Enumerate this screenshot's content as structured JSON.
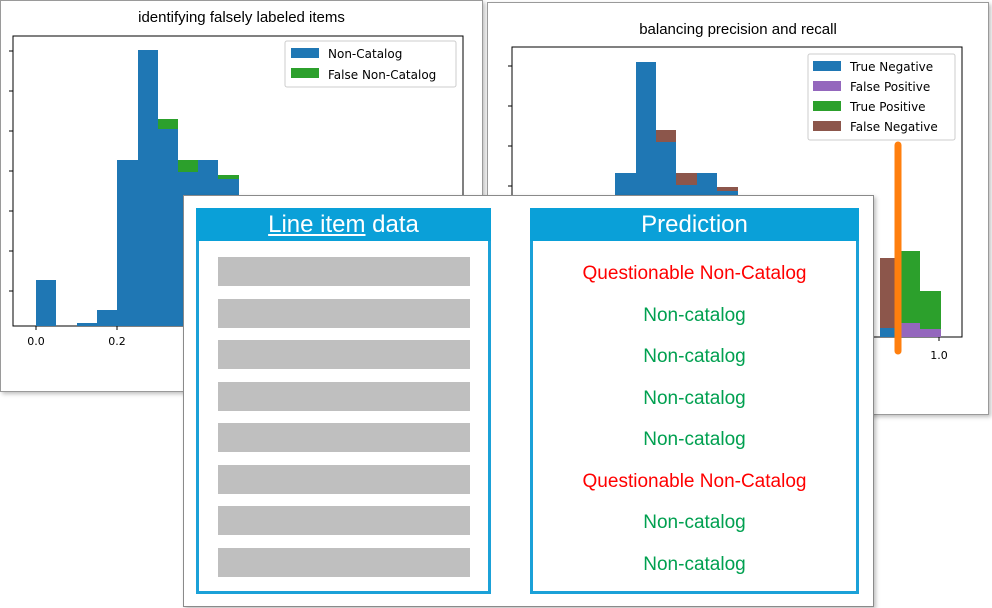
{
  "left_chart": {
    "title": "identifying falsely labeled items",
    "legend": [
      {
        "label": "Non-Catalog",
        "color": "#1f77b4"
      },
      {
        "label": "False Non-Catalog",
        "color": "#2ca02c"
      }
    ],
    "x_ticks": [
      "0.0",
      "0.2"
    ]
  },
  "right_chart": {
    "title": "balancing precision and recall",
    "legend": [
      {
        "label": "True Negative",
        "color": "#1f77b4"
      },
      {
        "label": "False Positive",
        "color": "#9467bd"
      },
      {
        "label": "True Positive",
        "color": "#2ca02c"
      },
      {
        "label": "False Negative",
        "color": "#8c564b"
      }
    ],
    "x_ticks": [
      "1.0"
    ],
    "threshold_color": "#ff7f0e"
  },
  "line_items": {
    "heading_underlined": "Line item",
    "heading_rest": " data",
    "row_count": 8
  },
  "prediction": {
    "heading": "Prediction",
    "rows": [
      {
        "text": "Questionable Non-Catalog",
        "color": "#ff0000"
      },
      {
        "text": "Non-catalog",
        "color": "#00a050"
      },
      {
        "text": "Non-catalog",
        "color": "#00a050"
      },
      {
        "text": "Non-catalog",
        "color": "#00a050"
      },
      {
        "text": "Non-catalog",
        "color": "#00a050"
      },
      {
        "text": "Questionable Non-Catalog",
        "color": "#ff0000"
      },
      {
        "text": "Non-catalog",
        "color": "#00a050"
      },
      {
        "text": "Non-catalog",
        "color": "#00a050"
      }
    ]
  }
}
